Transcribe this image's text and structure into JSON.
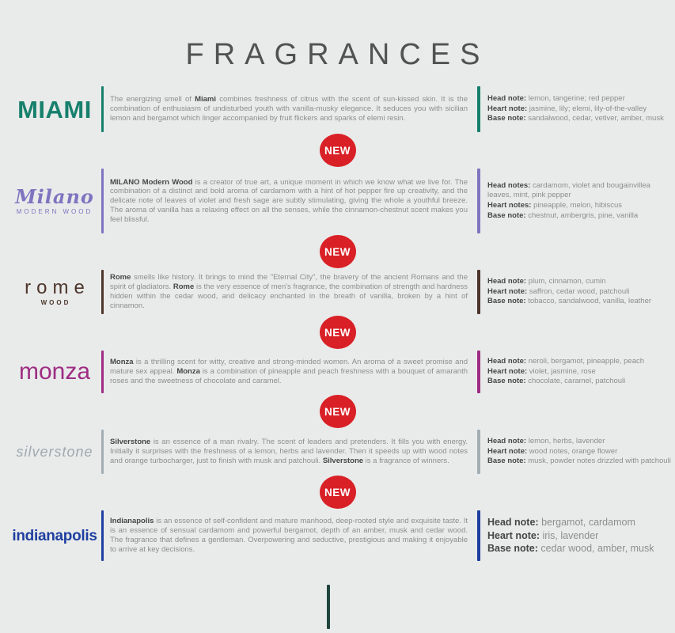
{
  "page": {
    "title": "FRAGRANCES"
  },
  "new_badge": {
    "label": "NEW",
    "color": "#d92027"
  },
  "colors": {
    "background": "#e9ebea",
    "title_text": "#525252",
    "body_text": "#8d8d8d",
    "bold_text": "#464646",
    "footer_partial_bar": "#1e453e"
  },
  "fragrances": [
    {
      "name": "miami",
      "logo": {
        "text": "MIAMI",
        "subtext": "",
        "color": "#17806d"
      },
      "accent_color": "#17806d",
      "description": [
        {
          "t": "The energizing smell of ",
          "b": false
        },
        {
          "t": "Miami",
          "b": true
        },
        {
          "t": " combines freshness of citrus with the scent of sun-kissed skin. It is the combination of enthusiasm of undisturbed youth with vanilla-musky elegance. It seduces you with sicilian lemon and bergamot which linger accompanied by fruit flickers and sparks of elemi resin.",
          "b": false
        }
      ],
      "notes": [
        {
          "label": "Head note",
          "value": "lemon, tangerine; red pepper"
        },
        {
          "label": "Heart note",
          "value": "jasmine, lily; elemi, lily-of-the-valley"
        },
        {
          "label": "Base note",
          "value": "sandalwood, cedar, vetiver, amber, musk"
        }
      ],
      "notes_size": "normal",
      "new_after": true
    },
    {
      "name": "milano",
      "logo": {
        "text": "Milano",
        "subtext": "MODERN WOOD",
        "color": "#7e74c0"
      },
      "accent_color": "#7e74c0",
      "description": [
        {
          "t": "MILANO Modern Wood",
          "b": true
        },
        {
          "t": " is a creator of true art, a unique moment in which we know what we live for. The combination of a distinct and bold aroma of cardamom with a hint of hot pepper fire up creativity, and the delicate note of leaves of violet and fresh sage are subtly stimulating, giving the whole a youthful breeze. The aroma of vanilla has a relaxing effect on all the senses, while the cinnamon-chestnut scent makes you feel blissful.",
          "b": false
        }
      ],
      "notes": [
        {
          "label": "Head notes",
          "value": "cardamom, violet and bougainvillea leaves, mint, pink pepper"
        },
        {
          "label": "Heart notes",
          "value": "pineapple, melon, hibiscus"
        },
        {
          "label": "Base note",
          "value": "chestnut, ambergris, pine, vanilla"
        }
      ],
      "notes_size": "normal",
      "new_after": true
    },
    {
      "name": "rome",
      "logo": {
        "text": "rome",
        "subtext": "WOOD",
        "color": "#4d352b"
      },
      "accent_color": "#4d352b",
      "description": [
        {
          "t": "Rome",
          "b": true
        },
        {
          "t": " smells like history. It brings to mind the \"Eternal City\", the bravery of the ancient Romans and the spirit of gladiators. ",
          "b": false
        },
        {
          "t": "Rome",
          "b": true
        },
        {
          "t": " is the very essence of men's fragrance, the combination of strength and hardness hidden within the cedar wood, and delicacy enchanted in the breath of vanilla, broken by a hint of cinnamon.",
          "b": false
        }
      ],
      "notes": [
        {
          "label": "Head note",
          "value": "plum, cinnamon, cumin"
        },
        {
          "label": "Heart note",
          "value": "saffron, cedar wood, patchouli"
        },
        {
          "label": "Base note",
          "value": "tobacco, sandalwood, vanilla, leather"
        }
      ],
      "notes_size": "normal",
      "new_after": true
    },
    {
      "name": "monza",
      "logo": {
        "text": "monza",
        "subtext": "",
        "color": "#9e2c83"
      },
      "accent_color": "#9e2c83",
      "description": [
        {
          "t": "Monza",
          "b": true
        },
        {
          "t": " is a thrilling scent for witty, creative and strong-minded women. An aroma of a sweet promise and mature sex appeal. ",
          "b": false
        },
        {
          "t": "Monza",
          "b": true
        },
        {
          "t": " is a combination of pineapple and peach freshness with a bouquet of amaranth roses and the sweetness of chocolate and caramel.",
          "b": false
        }
      ],
      "notes": [
        {
          "label": "Head note",
          "value": "neroli, bergamot, pineapple, peach"
        },
        {
          "label": "Heart note",
          "value": "violet, jasmine, rose"
        },
        {
          "label": "Base note",
          "value": "chocolate, caramel, patchouli"
        }
      ],
      "notes_size": "normal",
      "new_after": true
    },
    {
      "name": "silverstone",
      "logo": {
        "text": "silverstone",
        "subtext": "",
        "color": "#9fa9b0"
      },
      "accent_color": "#a3adb4",
      "description": [
        {
          "t": "Silverstone",
          "b": true
        },
        {
          "t": " is an essence of a man rivalry. The scent of leaders and pretenders. It fills you with energy. Initially it surprises with the freshness of a lemon, herbs and lavender. Then it speeds up with wood notes and orange turbocharger, just to finish with musk and patchouli. ",
          "b": false
        },
        {
          "t": "Silverstone",
          "b": true
        },
        {
          "t": " is a fragrance of winners.",
          "b": false
        }
      ],
      "notes": [
        {
          "label": "Head note",
          "value": "lemon, herbs, lavender"
        },
        {
          "label": "Heart note",
          "value": "wood notes, orange flower"
        },
        {
          "label": "Base note",
          "value": "musk, powder notes drizzled with patchouli"
        }
      ],
      "notes_size": "normal",
      "new_after": true
    },
    {
      "name": "indianapolis",
      "logo": {
        "text": "indianapolis",
        "subtext": "",
        "color": "#1e3fa0"
      },
      "accent_color": "#1e3fa0",
      "description": [
        {
          "t": "Indianapolis",
          "b": true
        },
        {
          "t": " is an essence of self-confident and mature manhood, deep-rooted style and exquisite taste. It is an essence of sensual cardamom and powerful bergamot, depth of an amber, musk and cedar wood. The fragrance that defines a gentleman. Overpowering and seductive, prestigious and making it enjoyable to arrive at key decisions.",
          "b": false
        }
      ],
      "notes": [
        {
          "label": "Head note",
          "value": "bergamot, cardamom"
        },
        {
          "label": "Heart note",
          "value": "iris, lavender"
        },
        {
          "label": "Base note",
          "value": "cedar wood, amber, musk"
        }
      ],
      "notes_size": "large",
      "new_after": false
    }
  ]
}
